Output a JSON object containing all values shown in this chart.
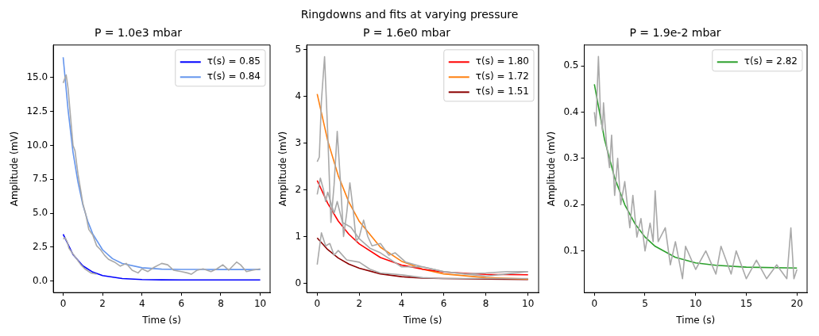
{
  "chart_data": [
    {
      "type": "line",
      "title": "P = 1.0e3 mbar",
      "xlabel": "Time (s)",
      "ylabel": "Amplitude (mV)",
      "annotations": [
        "Ringdowns and fits at varying pressure"
      ],
      "xlim": [
        -0.5,
        10.5
      ],
      "xticks": [
        0,
        2,
        4,
        6,
        8,
        10
      ],
      "ylim": [
        -0.85,
        17.4
      ],
      "yticks": [
        {
          "value": 0,
          "label": "0.0"
        },
        {
          "value": 2.5,
          "label": "2.5"
        },
        {
          "value": 5,
          "label": "5.0"
        },
        {
          "value": 7.5,
          "label": "7.5"
        },
        {
          "value": 10,
          "label": "10.0"
        },
        {
          "value": 12.5,
          "label": "12.5"
        },
        {
          "value": 15,
          "label": "15.0"
        }
      ],
      "grid": false,
      "legend": "top right",
      "marker": "none",
      "line_style": "solid",
      "series": [
        {
          "color": "#a9a9a9",
          "x": [
            0,
            0.1,
            0.15,
            0.25,
            0.35,
            0.5,
            0.6,
            0.75,
            0.9,
            1.0,
            1.15,
            1.3,
            1.5,
            1.7,
            1.9,
            2.1,
            2.3,
            2.6,
            2.9,
            3.2,
            3.5,
            3.8,
            4.0,
            4.3,
            4.6,
            5.0,
            5.3,
            5.6,
            6.0,
            6.3,
            6.5,
            6.8,
            7.1,
            7.5,
            7.8,
            8.1,
            8.4,
            8.8,
            9.0,
            9.3,
            9.6,
            10.0
          ],
          "values": [
            14.6,
            15.0,
            15.2,
            14.2,
            12.5,
            10.0,
            9.6,
            7.9,
            6.6,
            5.7,
            4.9,
            3.8,
            3.4,
            2.6,
            2.3,
            1.9,
            1.6,
            1.4,
            1.1,
            1.3,
            0.8,
            0.6,
            0.9,
            0.7,
            1.0,
            1.3,
            1.2,
            0.8,
            0.7,
            0.6,
            0.5,
            0.8,
            0.9,
            0.7,
            0.9,
            1.2,
            0.8,
            1.4,
            1.2,
            0.7,
            0.8,
            0.9
          ]
        },
        {
          "color": "#a9a9a9",
          "x": [
            0,
            0.1,
            0.2,
            0.3,
            0.5,
            0.7,
            0.9,
            1.1,
            1.4,
            1.7
          ],
          "values": [
            3.1,
            3.2,
            2.9,
            2.4,
            2.0,
            1.6,
            1.2,
            0.9,
            0.6,
            0.5
          ]
        },
        {
          "name": "τ(s) = 0.85",
          "color": "#0000ff",
          "x": [
            0,
            0.5,
            1,
            1.5,
            2,
            3,
            4,
            5,
            6,
            8,
            10
          ],
          "values": [
            3.45,
            1.95,
            1.12,
            0.66,
            0.4,
            0.18,
            0.11,
            0.09,
            0.08,
            0.08,
            0.08
          ]
        },
        {
          "name": "τ(s) = 0.84",
          "color": "#6495ed",
          "x": [
            0,
            0.25,
            0.5,
            0.75,
            1,
            1.25,
            1.5,
            2,
            2.5,
            3,
            4,
            5,
            6,
            8,
            10
          ],
          "values": [
            16.5,
            12.6,
            9.48,
            7.3,
            5.61,
            4.4,
            3.48,
            2.3,
            1.65,
            1.29,
            0.98,
            0.88,
            0.86,
            0.85,
            0.85
          ]
        }
      ]
    },
    {
      "type": "line",
      "title": "P = 1.6e0 mbar",
      "xlabel": "Time (s)",
      "ylabel": "Amplitude (mV)",
      "xlim": [
        -0.5,
        10.5
      ],
      "xticks": [
        0,
        2,
        4,
        6,
        8,
        10
      ],
      "ylim": [
        -0.2,
        5.1
      ],
      "yticks": [
        0,
        1,
        2,
        3,
        4,
        5
      ],
      "grid": false,
      "legend": "top right",
      "marker": "none",
      "line_style": "solid",
      "series": [
        {
          "color": "#a9a9a9",
          "x": [
            0,
            0.1,
            0.2,
            0.35,
            0.5,
            0.65,
            0.8,
            0.95,
            1.1,
            1.25,
            1.4,
            1.55,
            1.7,
            1.85,
            2.0,
            2.2,
            2.4,
            2.6,
            3.0,
            3.4,
            3.7,
            4.2,
            5,
            6,
            7,
            8,
            9,
            10
          ],
          "values": [
            2.6,
            2.7,
            3.9,
            4.85,
            3.2,
            1.3,
            2.1,
            3.25,
            2.2,
            1.0,
            1.5,
            2.15,
            1.6,
            0.9,
            1.0,
            1.35,
            1.0,
            0.8,
            0.85,
            0.6,
            0.65,
            0.45,
            0.35,
            0.25,
            0.2,
            0.15,
            0.2,
            0.25
          ]
        },
        {
          "color": "#a9a9a9",
          "x": [
            0,
            0.15,
            0.3,
            0.4,
            0.5,
            0.8,
            0.95,
            1.2,
            1.6,
            2.0,
            2.5,
            3.0,
            3.5,
            4,
            5,
            6,
            7,
            8,
            9,
            10
          ],
          "values": [
            1.9,
            2.25,
            2.0,
            1.75,
            1.95,
            1.5,
            1.75,
            1.3,
            1.2,
            0.95,
            0.75,
            0.65,
            0.5,
            0.35,
            0.35,
            0.25,
            0.2,
            0.22,
            0.25,
            0.25
          ]
        },
        {
          "color": "#a9a9a9",
          "x": [
            0,
            0.2,
            0.4,
            0.6,
            0.8,
            1.0,
            1.4,
            2.0,
            2.5,
            3,
            4,
            5,
            6,
            8,
            10
          ],
          "values": [
            0.4,
            1.08,
            0.8,
            0.85,
            0.6,
            0.7,
            0.5,
            0.45,
            0.3,
            0.22,
            0.18,
            0.12,
            0.1,
            0.1,
            0.1
          ]
        },
        {
          "name": "τ(s) = 1.80",
          "color": "#ff0000",
          "x": [
            0,
            0.5,
            1,
            1.5,
            2,
            3,
            4,
            5,
            6,
            8,
            10
          ],
          "values": [
            2.2,
            1.71,
            1.33,
            1.05,
            0.84,
            0.55,
            0.39,
            0.3,
            0.24,
            0.19,
            0.18
          ]
        },
        {
          "name": "τ(s) = 1.72",
          "color": "#ff7f0e",
          "x": [
            0,
            0.5,
            1,
            1.5,
            2,
            3,
            4,
            5,
            6,
            8,
            10
          ],
          "values": [
            4.05,
            3.05,
            2.3,
            1.74,
            1.32,
            0.77,
            0.47,
            0.3,
            0.2,
            0.12,
            0.09
          ]
        },
        {
          "name": "τ(s) = 1.51",
          "color": "#8b0000",
          "x": [
            0,
            0.5,
            1,
            1.5,
            2,
            3,
            4,
            5,
            6,
            8,
            10
          ],
          "values": [
            0.97,
            0.72,
            0.54,
            0.41,
            0.32,
            0.2,
            0.14,
            0.11,
            0.1,
            0.09,
            0.08
          ]
        }
      ]
    },
    {
      "type": "line",
      "title": "P = 1.9e-2 mbar",
      "xlabel": "Time (s)",
      "ylabel": "Amplitude (mV)",
      "xlim": [
        -1,
        21
      ],
      "xticks": [
        0,
        5,
        10,
        15,
        20
      ],
      "ylim": [
        0.01,
        0.545
      ],
      "yticks": [
        0.1,
        0.2,
        0.3,
        0.4,
        0.5
      ],
      "grid": false,
      "legend": "top right",
      "marker": "none",
      "line_style": "solid",
      "series": [
        {
          "color": "#a9a9a9",
          "x": [
            0,
            0.15,
            0.4,
            0.6,
            0.8,
            0.9,
            1.2,
            1.5,
            1.7,
            2,
            2.3,
            2.6,
            3,
            3.5,
            3.8,
            4.2,
            4.6,
            5,
            5.5,
            5.8,
            6,
            6.3,
            7,
            7.5,
            8,
            8.7,
            9,
            10,
            11,
            12,
            12.5,
            13.5,
            14,
            15,
            16,
            17,
            18,
            19,
            19.4,
            19.7,
            20
          ],
          "values": [
            0.4,
            0.37,
            0.52,
            0.4,
            0.36,
            0.42,
            0.33,
            0.28,
            0.35,
            0.22,
            0.3,
            0.2,
            0.25,
            0.15,
            0.22,
            0.13,
            0.17,
            0.1,
            0.16,
            0.12,
            0.23,
            0.12,
            0.15,
            0.07,
            0.12,
            0.04,
            0.11,
            0.06,
            0.1,
            0.05,
            0.11,
            0.05,
            0.1,
            0.04,
            0.08,
            0.04,
            0.07,
            0.04,
            0.15,
            0.04,
            0.06
          ]
        },
        {
          "name": "τ(s) = 2.82",
          "color": "#2ca02c",
          "x": [
            0,
            1,
            2,
            3,
            4,
            5,
            6,
            8,
            10,
            12,
            15,
            20
          ],
          "values": [
            0.46,
            0.341,
            0.258,
            0.2,
            0.159,
            0.13,
            0.11,
            0.086,
            0.074,
            0.069,
            0.065,
            0.063
          ]
        }
      ]
    }
  ]
}
